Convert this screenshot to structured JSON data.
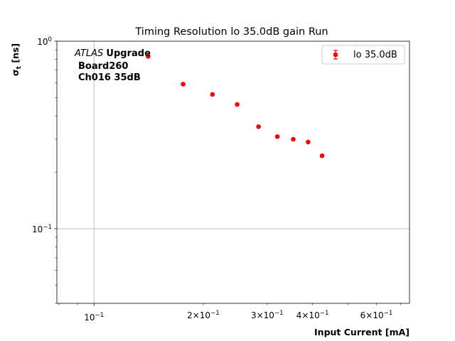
{
  "chart_data": {
    "type": "scatter",
    "title": "Timing Resolution lo 35.0dB gain Run",
    "xlabel": "Input Current [mA]",
    "ylabel_main": "σ",
    "ylabel_sub": "t",
    "ylabel_unit": "[ns]",
    "x_scale": "log",
    "y_scale": "log",
    "xlim": [
      0.079,
      0.74
    ],
    "ylim": [
      0.04,
      1.0
    ],
    "grid": true,
    "legend_position": "top-right",
    "annotation": {
      "experiment": "ATLAS",
      "experiment_suffix": "Upgrade",
      "board": "Board260",
      "channel": "Ch016 35dB"
    },
    "x_major_ticks": [
      {
        "value": 0.1,
        "mantissa": "10",
        "exponent": "−1"
      }
    ],
    "x_minor_tick_labels": [
      {
        "value": 0.2,
        "mantissa": "2×10",
        "exponent": "−1"
      },
      {
        "value": 0.3,
        "mantissa": "3×10",
        "exponent": "−1"
      },
      {
        "value": 0.4,
        "mantissa": "4×10",
        "exponent": "−1"
      },
      {
        "value": 0.6,
        "mantissa": "6×10",
        "exponent": "−1"
      }
    ],
    "y_major_ticks": [
      {
        "value": 0.1,
        "mantissa": "10",
        "exponent": "−1"
      },
      {
        "value": 1.0,
        "mantissa": "10",
        "exponent": "0"
      }
    ],
    "series": [
      {
        "name": "lo 35.0dB",
        "color": "#ff0000",
        "x": [
          0.141,
          0.176,
          0.212,
          0.248,
          0.284,
          0.32,
          0.354,
          0.389,
          0.425
        ],
        "y": [
          0.83,
          0.59,
          0.52,
          0.46,
          0.35,
          0.31,
          0.3,
          0.29,
          0.245
        ]
      }
    ]
  }
}
